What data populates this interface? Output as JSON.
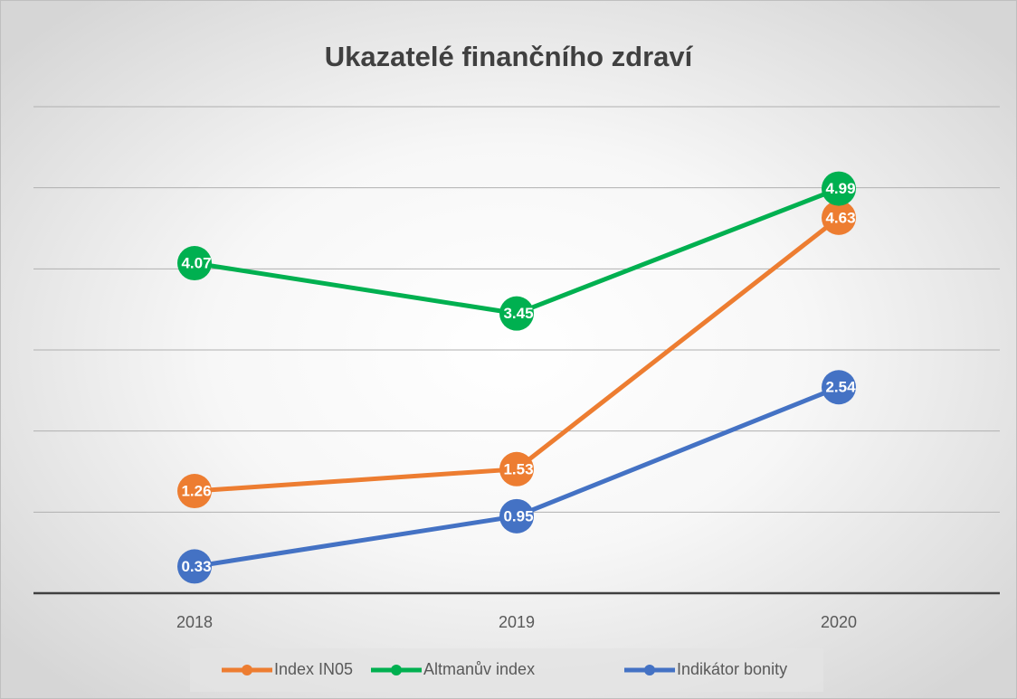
{
  "chart_data": {
    "type": "line",
    "title": "Ukazatelé finančního zdraví",
    "categories": [
      "2018",
      "2019",
      "2020"
    ],
    "series": [
      {
        "name": "Index IN05",
        "color": "#ED7D31",
        "values": [
          1.26,
          1.53,
          4.63
        ]
      },
      {
        "name": "Altmanův index",
        "color": "#00B050",
        "values": [
          4.07,
          3.45,
          4.99
        ]
      },
      {
        "name": "Indikátor bonity",
        "color": "#4472C4",
        "values": [
          0.33,
          0.95,
          2.54
        ]
      }
    ],
    "ylim": [
      0,
      6
    ],
    "yticks": [
      0,
      1,
      2,
      3,
      4,
      5,
      6
    ],
    "grid": true,
    "legend": "bottom"
  }
}
